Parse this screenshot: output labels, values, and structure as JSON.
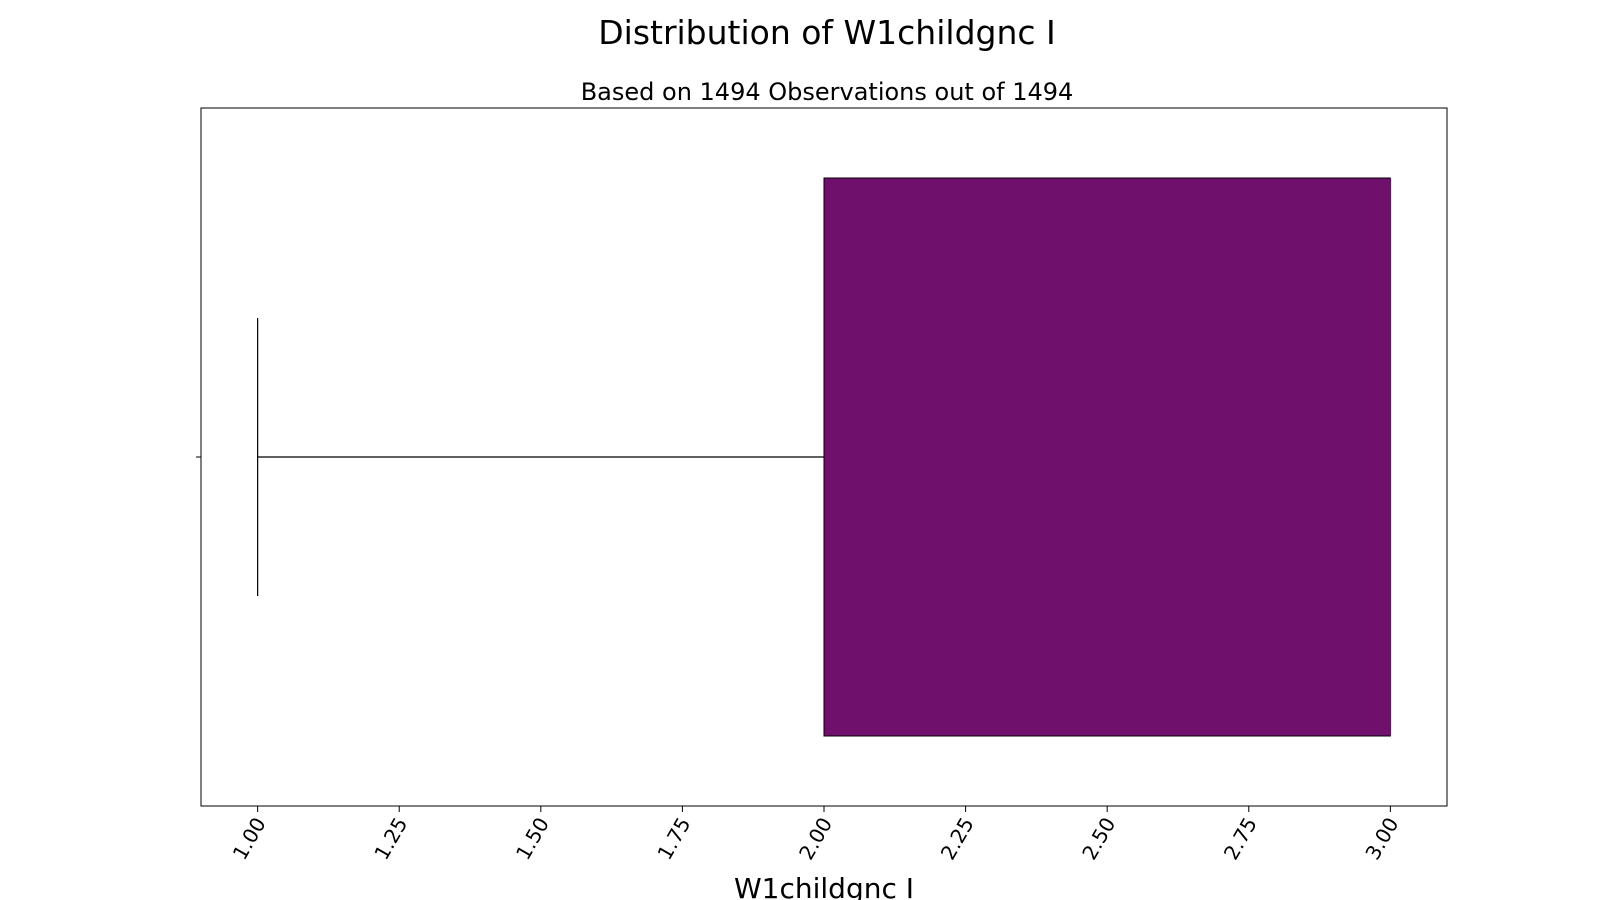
{
  "chart_data": {
    "type": "boxplot",
    "orientation": "horizontal",
    "title": "Distribution of W1childgnc I",
    "subtitle": "Based on 1494 Observations out of 1494",
    "xlabel": "W1childgnc I",
    "ylabel": "",
    "xlim": [
      0.9,
      3.1
    ],
    "xticks": [
      1.0,
      1.25,
      1.5,
      1.75,
      2.0,
      2.25,
      2.5,
      2.75,
      3.0
    ],
    "xtick_labels": [
      "1.00",
      "1.25",
      "1.50",
      "1.75",
      "2.00",
      "2.25",
      "2.50",
      "2.75",
      "3.00"
    ],
    "tick_label_rotation_deg": 60,
    "grid": false,
    "box": {
      "whisker_low": 1.0,
      "q1": 2.0,
      "median": 3.0,
      "q3": 3.0,
      "whisker_high": 3.0,
      "fill_color": "#70106d",
      "edge_color": "#000000"
    }
  }
}
